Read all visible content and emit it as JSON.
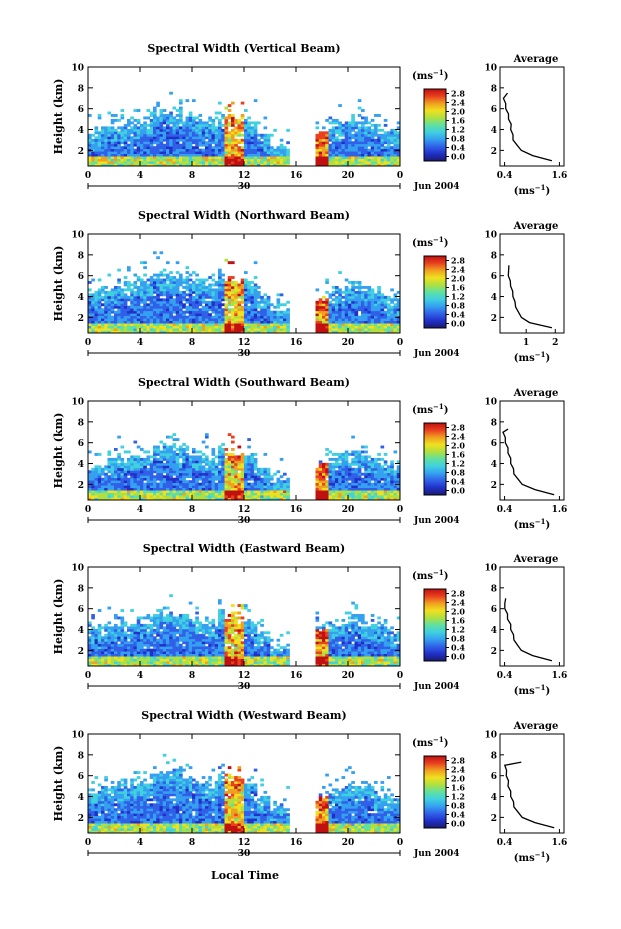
{
  "figure": {
    "xlabel": "Local Time",
    "ylabel": "Height (km)",
    "date_day": "30",
    "date_month_year": "Jun 2004",
    "colorbar_unit_label": "(ms",
    "colorbar_unit_exp": "−1",
    "colorbar_unit_close": ")",
    "colorbar_ticks": [
      "2.8",
      "2.4",
      "2.0",
      "1.6",
      "1.2",
      "0.8",
      "0.4",
      "0.0"
    ],
    "profile_title": "Average",
    "profile_xlabel": "(ms",
    "profile_xlabel_exp": "−1",
    "profile_xlabel_close": ")"
  },
  "colors": {
    "colormap": [
      "#1a1a6e",
      "#2030c8",
      "#3060e8",
      "#35a0f0",
      "#40d0e0",
      "#60e0a0",
      "#b0e040",
      "#f0e020",
      "#f0a020",
      "#e84020",
      "#c01010"
    ]
  },
  "chart_data": [
    {
      "type": "heatmap",
      "title": "Spectral Width (Vertical Beam)",
      "colorbar_range": [
        0.0,
        2.8
      ],
      "x_ticks": [
        "0",
        "4",
        "8",
        "12",
        "16",
        "20",
        "0"
      ],
      "y_ticks": [
        "2",
        "4",
        "6",
        "8",
        "10"
      ],
      "xlim": [
        0,
        24
      ],
      "ylim": [
        0.5,
        10
      ],
      "data_gap_hours": [
        15.6,
        17.4
      ],
      "profile": {
        "x_ticks": [
          "0.4",
          "1.6"
        ],
        "xlim": [
          0.3,
          1.7
        ],
        "height_km": [
          1.0,
          1.5,
          2.0,
          2.5,
          3.0,
          3.5,
          4.0,
          4.5,
          5.0,
          5.5,
          6.0,
          6.5,
          7.0,
          7.5
        ],
        "width_ms": [
          1.45,
          1.0,
          0.78,
          0.66,
          0.6,
          0.57,
          0.55,
          0.53,
          0.5,
          0.47,
          0.44,
          0.41,
          0.39,
          0.45
        ]
      }
    },
    {
      "type": "heatmap",
      "title": "Spectral Width (Northward Beam)",
      "colorbar_range": [
        0.0,
        2.8
      ],
      "x_ticks": [
        "0",
        "4",
        "8",
        "12",
        "16",
        "20",
        "0"
      ],
      "y_ticks": [
        "2",
        "4",
        "6",
        "8",
        "10"
      ],
      "xlim": [
        0,
        24
      ],
      "ylim": [
        0.5,
        10
      ],
      "data_gap_hours": [
        15.6,
        17.4
      ],
      "profile": {
        "x_ticks": [
          "1",
          "2"
        ],
        "xlim": [
          0.1,
          2.3
        ],
        "height_km": [
          1.0,
          1.5,
          2.0,
          2.5,
          3.0,
          3.5,
          4.0,
          4.5,
          5.0,
          5.5,
          6.0,
          6.5,
          7.0
        ],
        "width_ms": [
          1.9,
          1.1,
          0.85,
          0.72,
          0.65,
          0.6,
          0.56,
          0.52,
          0.48,
          0.44,
          0.4,
          0.38,
          0.42
        ]
      }
    },
    {
      "type": "heatmap",
      "title": "Spectral Width (Southward Beam)",
      "colorbar_range": [
        0.0,
        2.8
      ],
      "x_ticks": [
        "0",
        "4",
        "8",
        "12",
        "16",
        "20",
        "0"
      ],
      "y_ticks": [
        "2",
        "4",
        "6",
        "8",
        "10"
      ],
      "xlim": [
        0,
        24
      ],
      "ylim": [
        0.5,
        10
      ],
      "data_gap_hours": [
        15.6,
        17.4
      ],
      "profile": {
        "x_ticks": [
          "0.4",
          "1.6"
        ],
        "xlim": [
          0.3,
          1.7
        ],
        "height_km": [
          1.0,
          1.5,
          2.0,
          2.5,
          3.0,
          3.5,
          4.0,
          4.5,
          5.0,
          5.5,
          6.0,
          6.5,
          7.0,
          7.3
        ],
        "width_ms": [
          1.5,
          1.05,
          0.8,
          0.68,
          0.62,
          0.58,
          0.55,
          0.52,
          0.49,
          0.46,
          0.43,
          0.4,
          0.38,
          0.46
        ]
      }
    },
    {
      "type": "heatmap",
      "title": "Spectral Width (Eastward Beam)",
      "colorbar_range": [
        0.0,
        2.8
      ],
      "x_ticks": [
        "0",
        "4",
        "8",
        "12",
        "16",
        "20",
        "0"
      ],
      "y_ticks": [
        "2",
        "4",
        "6",
        "8",
        "10"
      ],
      "xlim": [
        0,
        24
      ],
      "ylim": [
        0.5,
        10
      ],
      "data_gap_hours": [
        15.6,
        17.4
      ],
      "profile": {
        "x_ticks": [
          "0.4",
          "1.6"
        ],
        "xlim": [
          0.3,
          1.7
        ],
        "height_km": [
          1.0,
          1.5,
          2.0,
          2.5,
          3.0,
          3.5,
          4.0,
          4.5,
          5.0,
          5.5,
          6.0,
          6.5,
          7.0
        ],
        "width_ms": [
          1.45,
          1.0,
          0.78,
          0.67,
          0.62,
          0.58,
          0.55,
          0.52,
          0.48,
          0.45,
          0.42,
          0.39,
          0.44
        ]
      }
    },
    {
      "type": "heatmap",
      "title": "Spectral Width (Westward Beam)",
      "colorbar_range": [
        0.0,
        2.8
      ],
      "x_ticks": [
        "0",
        "4",
        "8",
        "12",
        "16",
        "20",
        "0"
      ],
      "y_ticks": [
        "2",
        "4",
        "6",
        "8",
        "10"
      ],
      "xlim": [
        0,
        24
      ],
      "ylim": [
        0.5,
        10
      ],
      "data_gap_hours": [
        15.6,
        17.4
      ],
      "profile": {
        "x_ticks": [
          "0.4",
          "1.6"
        ],
        "xlim": [
          0.3,
          1.7
        ],
        "height_km": [
          1.0,
          1.5,
          2.0,
          2.5,
          3.0,
          3.5,
          4.0,
          4.5,
          5.0,
          5.5,
          6.0,
          6.5,
          7.0,
          7.3
        ],
        "width_ms": [
          1.5,
          1.05,
          0.8,
          0.68,
          0.62,
          0.58,
          0.55,
          0.52,
          0.49,
          0.47,
          0.45,
          0.43,
          0.42,
          0.75
        ]
      }
    }
  ]
}
